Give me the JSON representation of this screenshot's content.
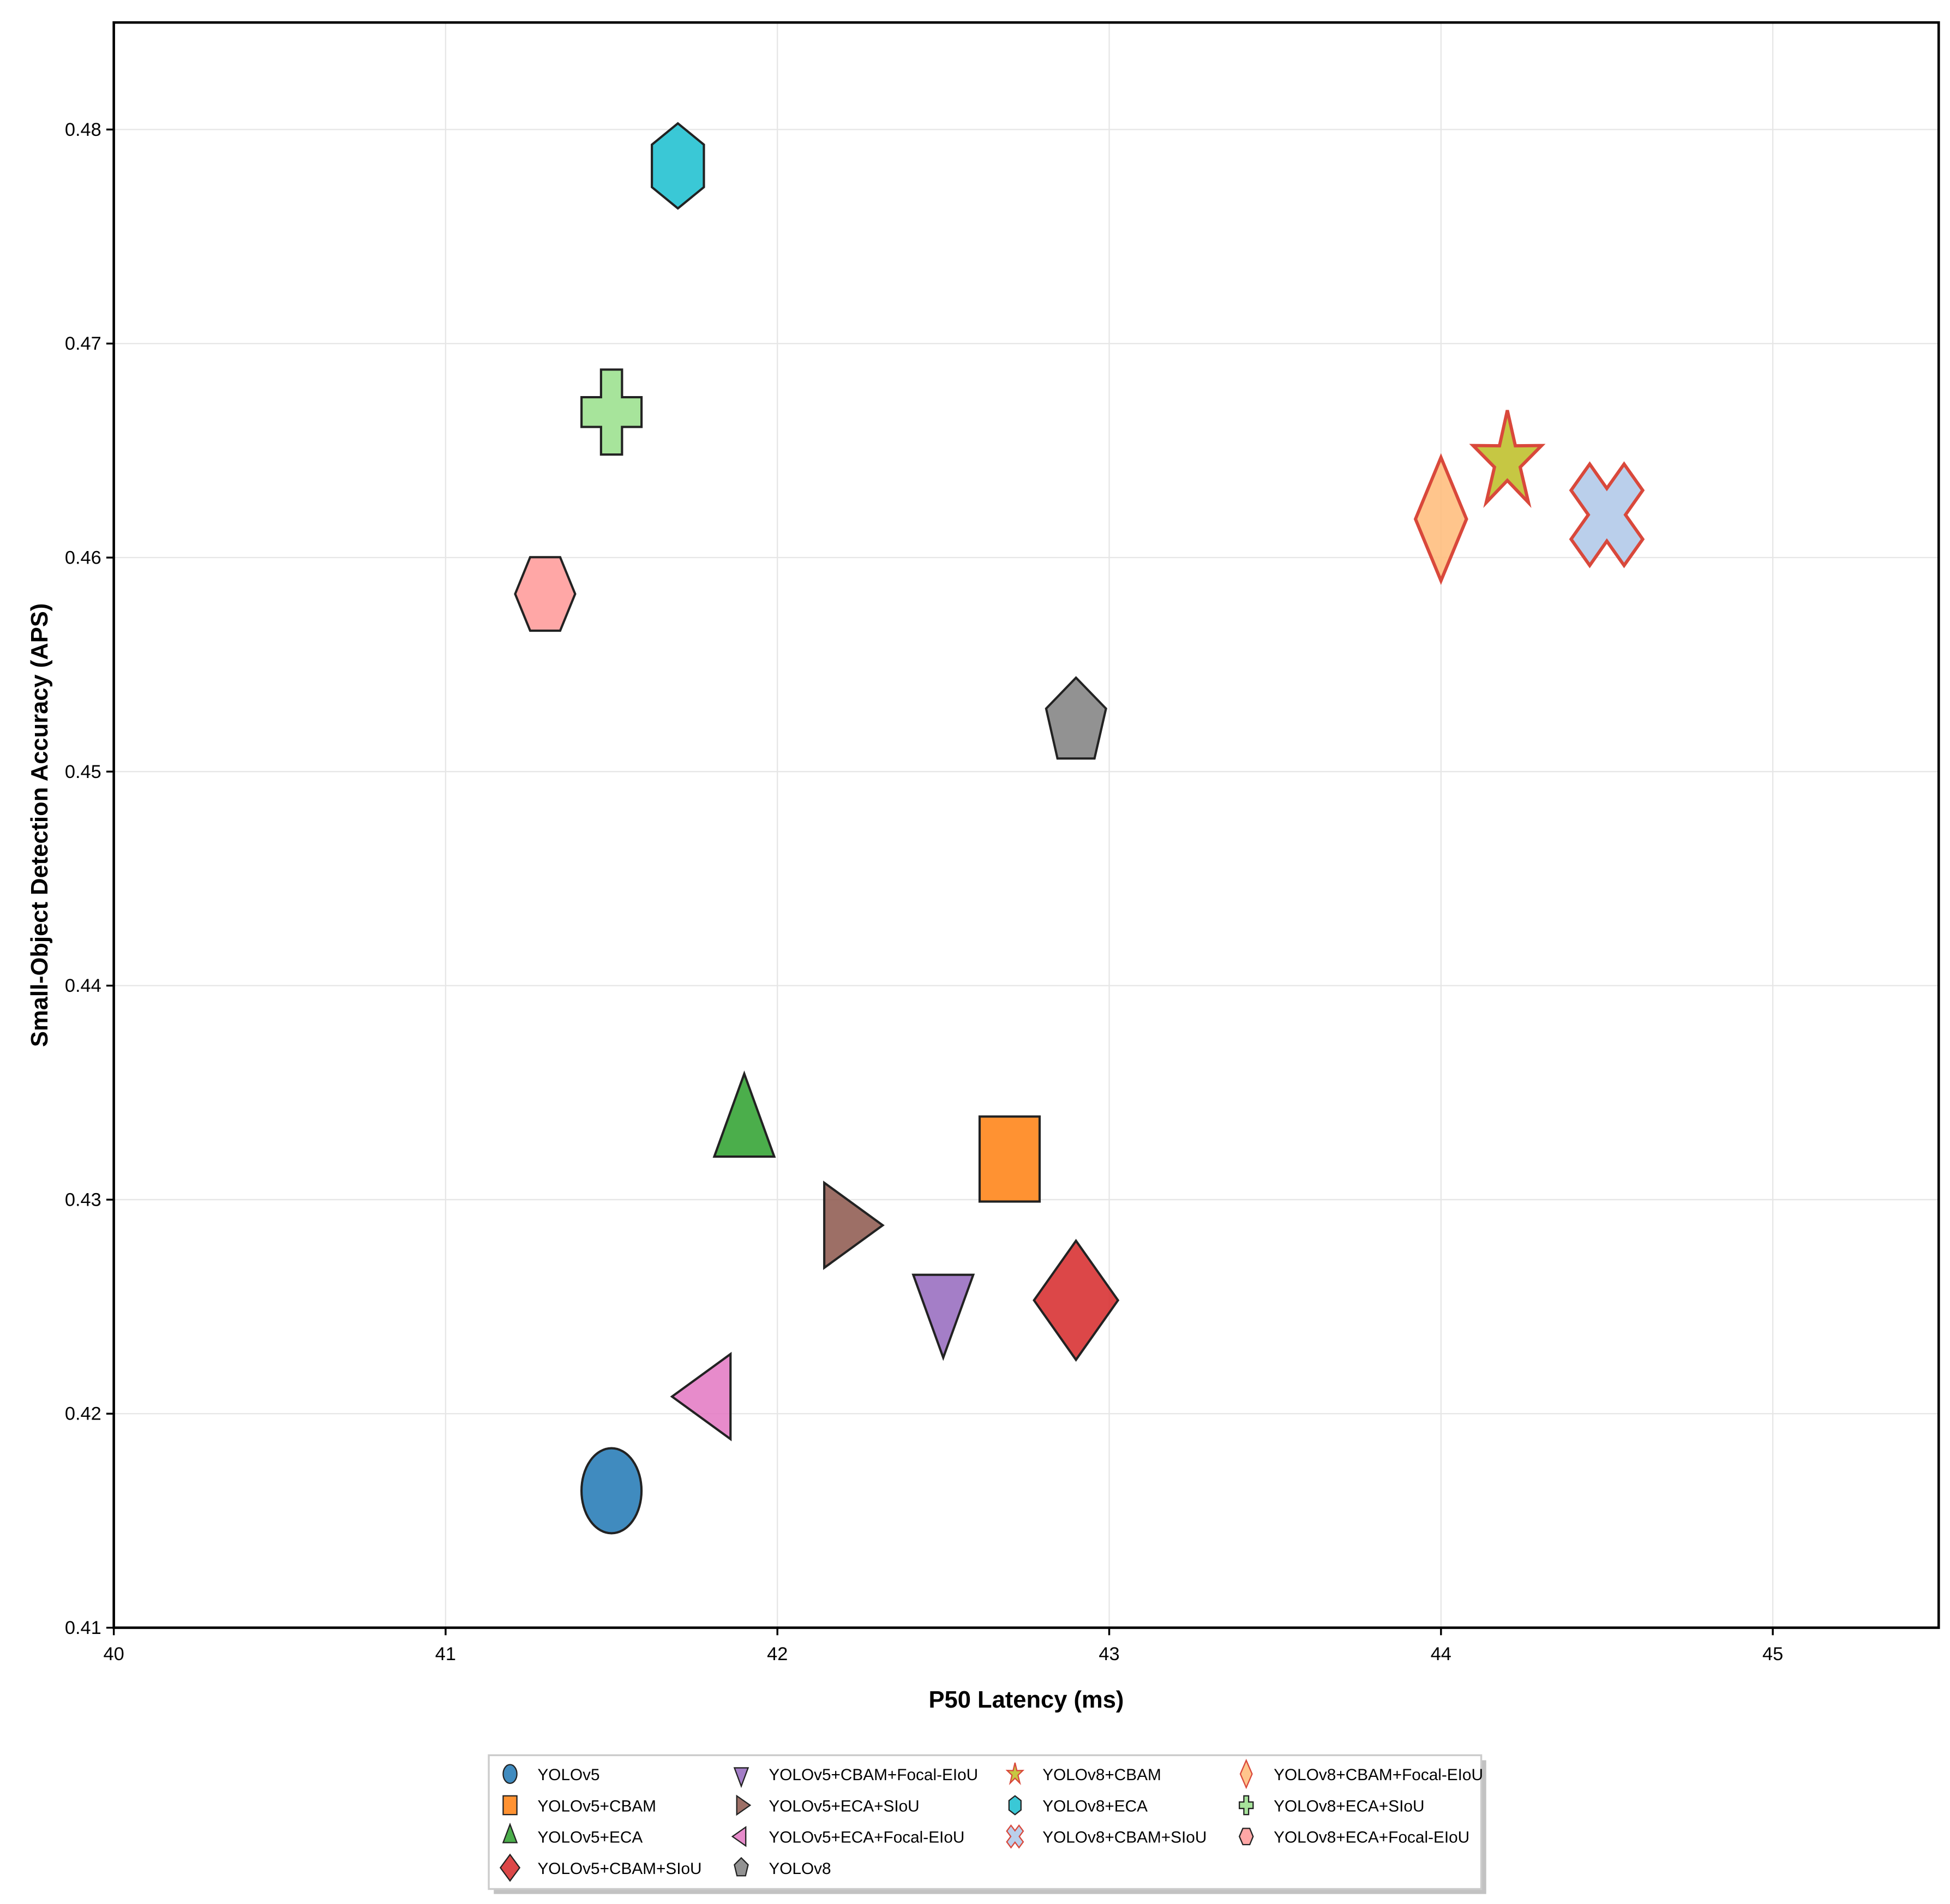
{
  "chart_data": {
    "type": "scatter",
    "title": "",
    "xlabel": "P50 Latency (ms)",
    "ylabel": "Small-Object Detection Accuracy (APS)",
    "xlim": [
      40,
      45.5
    ],
    "ylim": [
      0.41,
      0.485
    ],
    "xticks": [
      "40",
      "41",
      "42",
      "43",
      "44",
      "45"
    ],
    "yticks": [
      "0.41",
      "0.42",
      "0.43",
      "0.44",
      "0.45",
      "0.46",
      "0.47",
      "0.48"
    ],
    "grid": true,
    "legend_placement": "bottom-center-outside",
    "series": [
      {
        "name": "YOLOv5",
        "x": 41.5,
        "y": 0.4164,
        "marker": "circle",
        "color": "#1f77b4",
        "edge": "#222222"
      },
      {
        "name": "YOLOv5+CBAM",
        "x": 42.7,
        "y": 0.4319,
        "marker": "square",
        "color": "#ff7f0e",
        "edge": "#222222"
      },
      {
        "name": "YOLOv5+ECA",
        "x": 41.9,
        "y": 0.4333,
        "marker": "triangle-up",
        "color": "#2ca02c",
        "edge": "#222222"
      },
      {
        "name": "YOLOv5+CBAM+SIoU",
        "x": 42.9,
        "y": 0.4253,
        "marker": "diamond",
        "color": "#d62728",
        "edge": "#222222"
      },
      {
        "name": "YOLOv5+CBAM+Focal-EIoU",
        "x": 42.5,
        "y": 0.4252,
        "marker": "triangle-down",
        "color": "#9467bd",
        "edge": "#222222"
      },
      {
        "name": "YOLOv5+ECA+SIoU",
        "x": 42.2,
        "y": 0.4288,
        "marker": "triangle-right",
        "color": "#8c564b",
        "edge": "#222222"
      },
      {
        "name": "YOLOv5+ECA+Focal-EIoU",
        "x": 41.8,
        "y": 0.4208,
        "marker": "triangle-left",
        "color": "#e377c2",
        "edge": "#222222"
      },
      {
        "name": "YOLOv8",
        "x": 42.9,
        "y": 0.4523,
        "marker": "pentagon",
        "color": "#7f7f7f",
        "edge": "#222222"
      },
      {
        "name": "YOLOv8+CBAM",
        "x": 44.2,
        "y": 0.4645,
        "marker": "star",
        "color": "#bcbd22",
        "edge": "#d9483b"
      },
      {
        "name": "YOLOv8+ECA",
        "x": 41.7,
        "y": 0.4783,
        "marker": "hexagon-pointy",
        "color": "#17becf",
        "edge": "#222222"
      },
      {
        "name": "YOLOv8+CBAM+SIoU",
        "x": 44.5,
        "y": 0.462,
        "marker": "x",
        "color": "#aec7e8",
        "edge": "#d9483b"
      },
      {
        "name": "YOLOv8+CBAM+Focal-EIoU",
        "x": 44.0,
        "y": 0.4618,
        "marker": "thin-diamond",
        "color": "#ffbb78",
        "edge": "#d9483b"
      },
      {
        "name": "YOLOv8+ECA+SIoU",
        "x": 41.5,
        "y": 0.4668,
        "marker": "plus",
        "color": "#98df8a",
        "edge": "#222222"
      },
      {
        "name": "YOLOv8+ECA+Focal-EIoU",
        "x": 41.3,
        "y": 0.4583,
        "marker": "hexagon-flat",
        "color": "#ff9896",
        "edge": "#222222"
      }
    ]
  }
}
